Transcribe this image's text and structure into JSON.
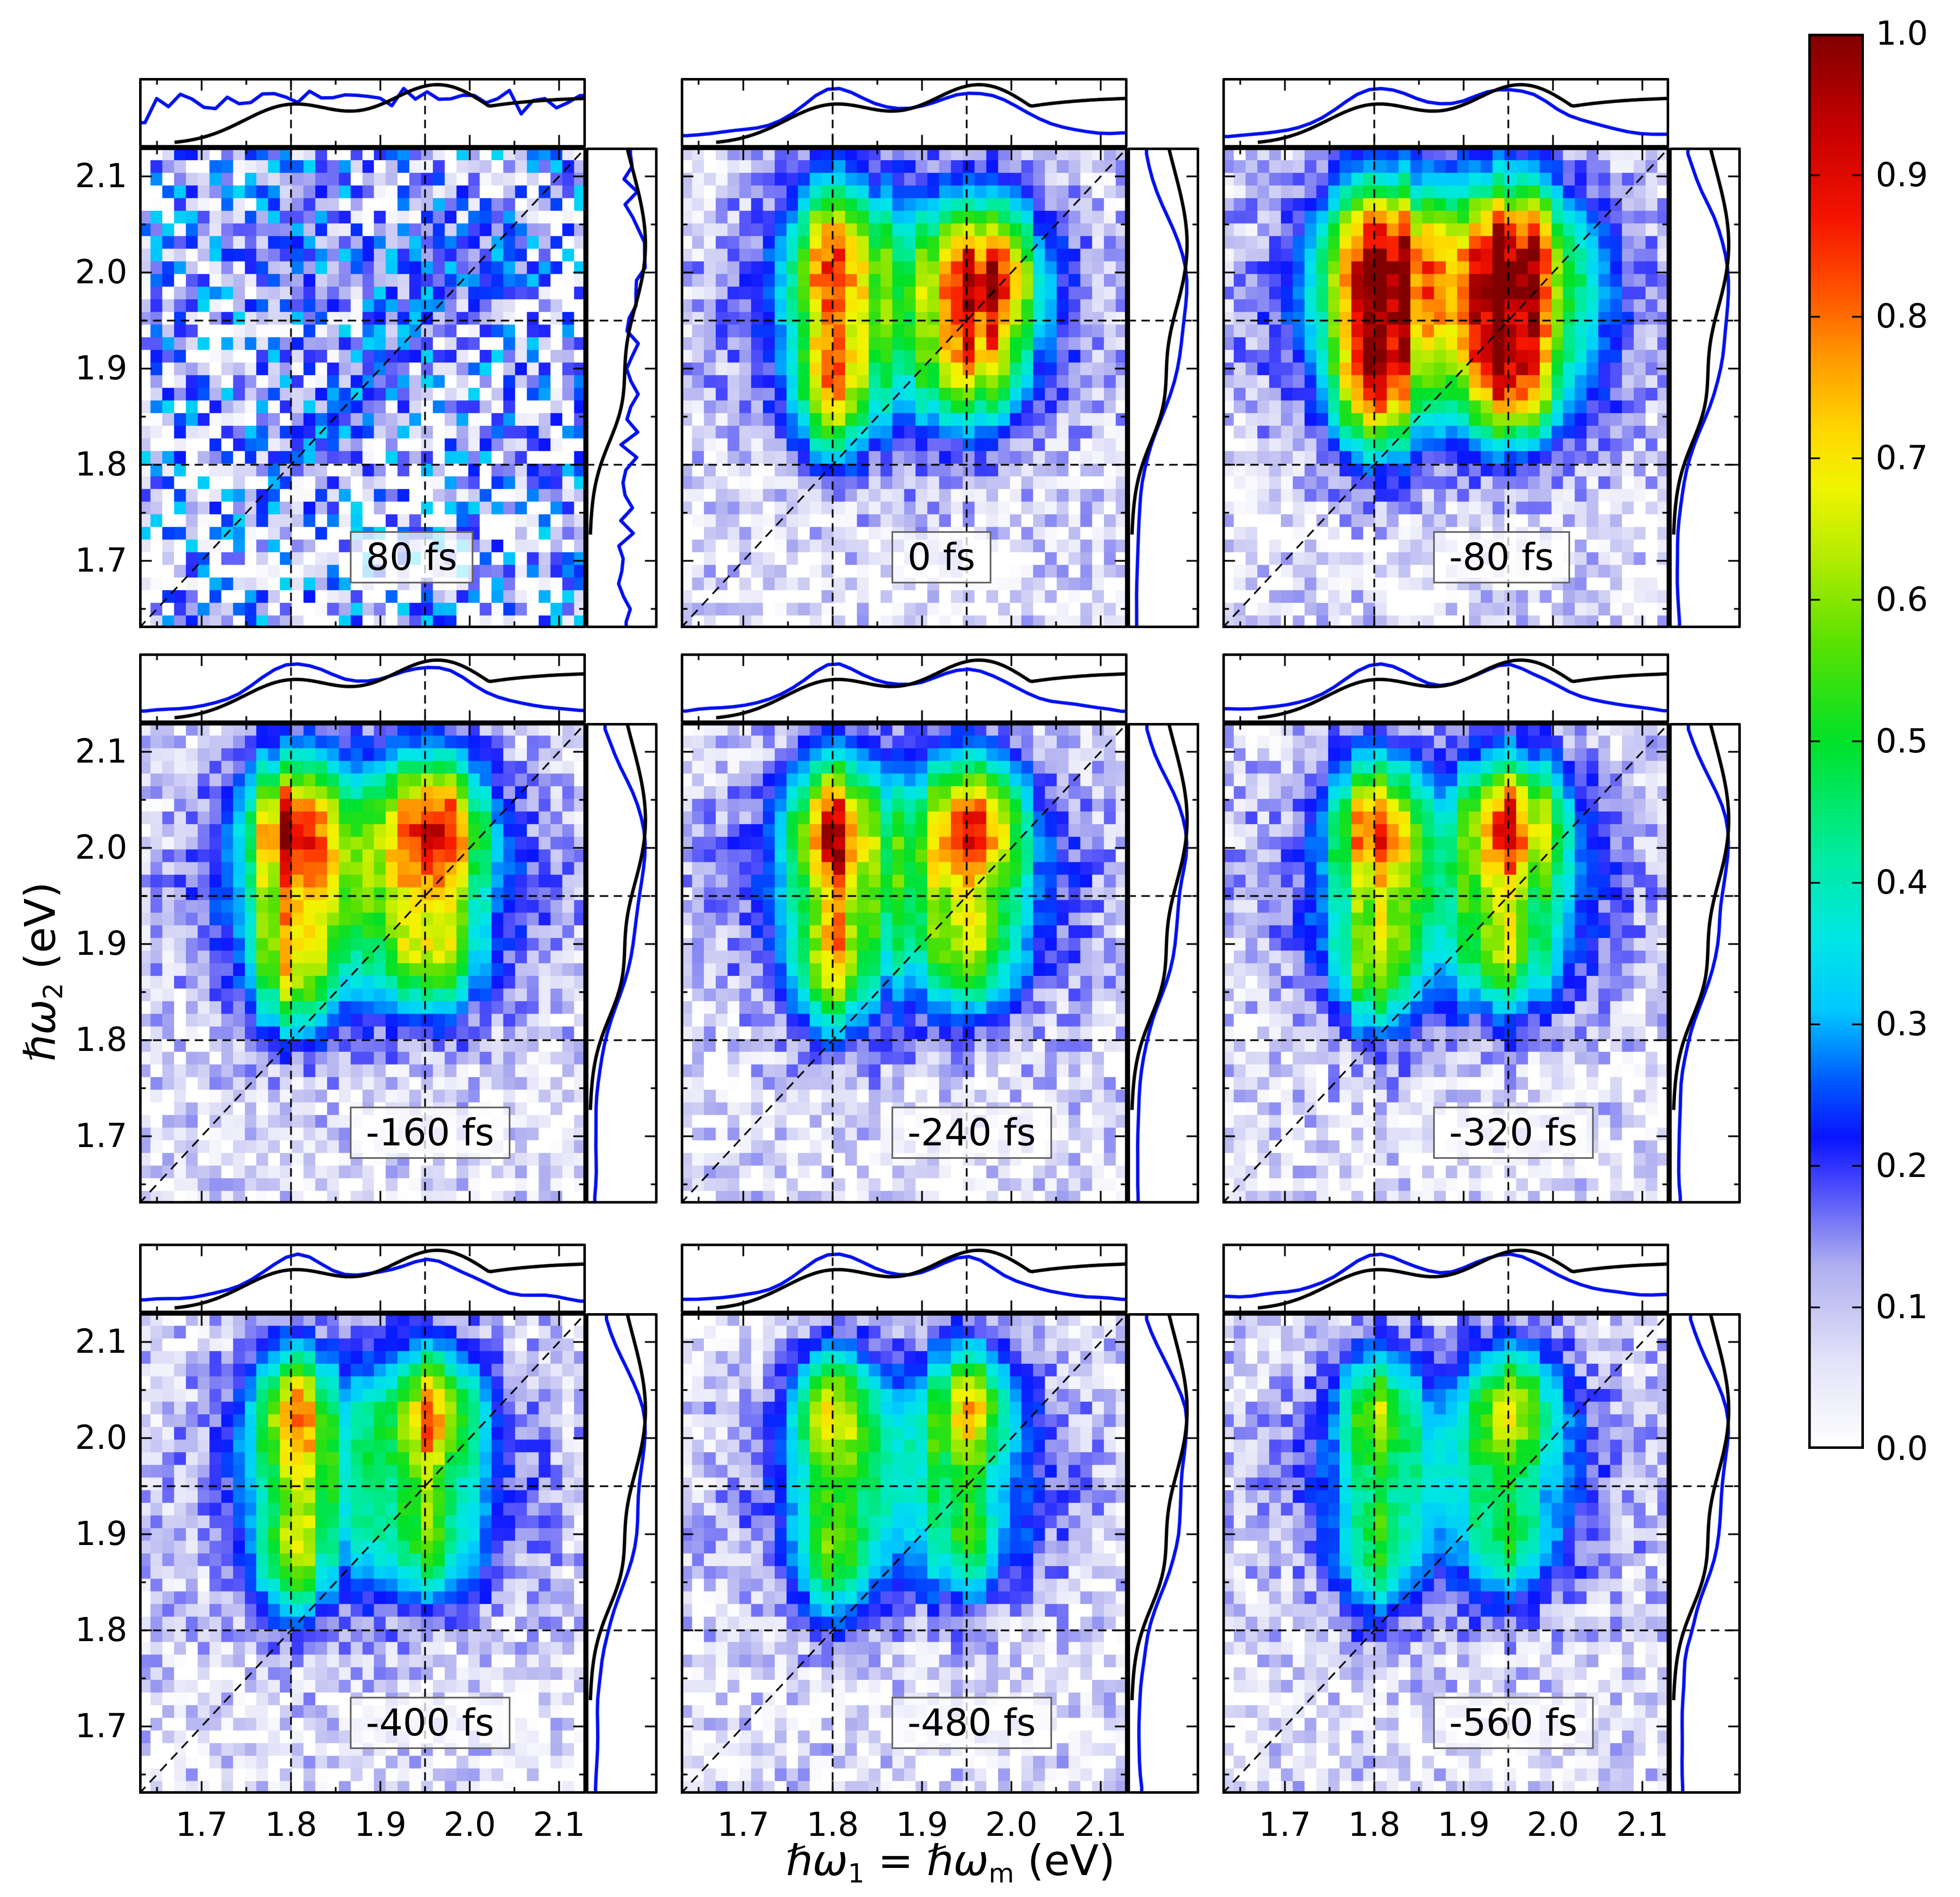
{
  "chart_data": {
    "type": "heatmap",
    "description": "3x3 grid of two-dimensional photon-echo spectra at different delay times, each with top and right marginal spectra (blue = data projection, black = reference spectrum), shared energy axes and a common normalized colorbar",
    "x_axis_title_parts": {
      "p1": "ℏω",
      "s1": "1",
      "p2": " = ",
      "p3": "ℏω",
      "s2": "m",
      "p4": "  (eV)"
    },
    "y_axis_title_parts": {
      "p1": "ℏω",
      "s1": "2",
      "p2": "  (eV)"
    },
    "axes": {
      "x_range_ev": [
        1.63,
        2.13
      ],
      "y_range_ev": [
        1.63,
        2.13
      ],
      "x_tick_labels": [
        "1.7",
        "1.8",
        "1.9",
        "2.0",
        "2.1"
      ],
      "y_tick_labels": [
        "2.1",
        "2.0",
        "1.9",
        "1.8",
        "1.7"
      ],
      "tick_values_ev": [
        1.7,
        1.8,
        1.9,
        2.0,
        2.1
      ],
      "minor_tick_step_ev": 0.05,
      "dashed_gridlines_ev": [
        1.8,
        1.95
      ],
      "diagonal_line": "omega2 = omega1",
      "grid": "dashed crosshair gridlines plus diagonal dashed line in every panel"
    },
    "colorbar": {
      "min": 0.0,
      "max": 1.0,
      "tick_labels": [
        "1.0",
        "0.9",
        "0.8",
        "0.7",
        "0.6",
        "0.5",
        "0.4",
        "0.3",
        "0.2",
        "0.1",
        "0.0"
      ],
      "stops": [
        [
          0.0,
          [
            255,
            255,
            255
          ]
        ],
        [
          0.06,
          [
            228,
            228,
            248
          ]
        ],
        [
          0.13,
          [
            175,
            175,
            240
          ]
        ],
        [
          0.18,
          [
            85,
            85,
            250
          ]
        ],
        [
          0.22,
          [
            10,
            20,
            255
          ]
        ],
        [
          0.26,
          [
            0,
            90,
            255
          ]
        ],
        [
          0.31,
          [
            0,
            200,
            255
          ]
        ],
        [
          0.36,
          [
            0,
            230,
            230
          ]
        ],
        [
          0.42,
          [
            0,
            235,
            160
          ]
        ],
        [
          0.5,
          [
            0,
            225,
            40
          ]
        ],
        [
          0.57,
          [
            90,
            225,
            0
          ]
        ],
        [
          0.63,
          [
            180,
            235,
            0
          ]
        ],
        [
          0.68,
          [
            240,
            245,
            0
          ]
        ],
        [
          0.72,
          [
            255,
            215,
            0
          ]
        ],
        [
          0.77,
          [
            255,
            155,
            0
          ]
        ],
        [
          0.82,
          [
            255,
            80,
            0
          ]
        ],
        [
          0.87,
          [
            245,
            20,
            0
          ]
        ],
        [
          0.93,
          [
            200,
            0,
            0
          ]
        ],
        [
          1.0,
          [
            128,
            0,
            0
          ]
        ]
      ]
    },
    "curve_colors": {
      "data_projection": "#0010f0",
      "reference_spectrum": "#000000"
    },
    "reference_spectra": {
      "top_black": {
        "g1": [
          1.8,
          0.075,
          0.62
        ],
        "g2": [
          1.965,
          0.085,
          0.95
        ],
        "plateau": [
          1.945,
          0.055,
          0.76
        ]
      },
      "right_black": {
        "g1": [
          2.02,
          0.12,
          0.75
        ],
        "g2": [
          1.86,
          0.06,
          0.35
        ],
        "plateau": [
          1.95,
          0.1,
          0.45
        ],
        "cutoff": [
          1.735,
          0.028
        ]
      }
    },
    "panels": [
      {
        "label": "80 fs",
        "delay_fs": 80,
        "seed": 101,
        "noise": 1.0,
        "env": [
          1.85,
          1.99,
          0.16,
          0.13,
          0.11
        ],
        "peaks": [
          [
            1.795,
            2.055,
            0.055,
            0.055,
            0.11
          ],
          [
            1.975,
            2.005,
            0.048,
            0.05,
            0.15
          ],
          [
            2.04,
            2.065,
            0.05,
            0.045,
            0.08
          ]
        ],
        "ridge": [
          1.845,
          0.075,
          0.032,
          0.24
        ]
      },
      {
        "label": "0 fs",
        "delay_fs": 0,
        "seed": 202,
        "noise": 0.45,
        "env": [
          1.885,
          1.96,
          0.175,
          0.135,
          0.45
        ],
        "peaks": [
          [
            1.8,
            2.02,
            0.05,
            0.08,
            0.51
          ],
          [
            1.968,
            2.0,
            0.06,
            0.075,
            0.59
          ],
          [
            1.8,
            1.875,
            0.045,
            0.075,
            0.49
          ],
          [
            1.955,
            1.895,
            0.052,
            0.06,
            0.35
          ]
        ],
        "ridge": null
      },
      {
        "label": "-80 fs",
        "delay_fs": -80,
        "seed": 303,
        "noise": 0.45,
        "env": [
          1.885,
          1.96,
          0.175,
          0.135,
          0.55
        ],
        "peaks": [
          [
            1.805,
            2.015,
            0.062,
            0.085,
            0.61
          ],
          [
            1.96,
            2.015,
            0.066,
            0.085,
            0.61
          ],
          [
            1.8,
            1.88,
            0.048,
            0.075,
            0.55
          ],
          [
            1.958,
            1.885,
            0.055,
            0.065,
            0.52
          ]
        ],
        "ridge": null
      },
      {
        "label": "-160 fs",
        "delay_fs": -160,
        "seed": 404,
        "noise": 0.45,
        "env": [
          1.885,
          1.96,
          0.175,
          0.135,
          0.47
        ],
        "peaks": [
          [
            1.8,
            2.025,
            0.05,
            0.075,
            0.61
          ],
          [
            1.958,
            2.025,
            0.058,
            0.075,
            0.61
          ],
          [
            1.8,
            1.875,
            0.045,
            0.075,
            0.46
          ],
          [
            1.955,
            1.885,
            0.052,
            0.06,
            0.36
          ]
        ],
        "ridge": null
      },
      {
        "label": "-240 fs",
        "delay_fs": -240,
        "seed": 505,
        "noise": 0.45,
        "env": [
          1.885,
          1.96,
          0.175,
          0.135,
          0.45
        ],
        "peaks": [
          [
            1.8,
            2.025,
            0.048,
            0.072,
            0.58
          ],
          [
            1.958,
            2.025,
            0.056,
            0.072,
            0.58
          ],
          [
            1.8,
            1.875,
            0.045,
            0.075,
            0.43
          ],
          [
            1.955,
            1.885,
            0.052,
            0.06,
            0.33
          ]
        ],
        "ridge": null
      },
      {
        "label": "-320 fs",
        "delay_fs": -320,
        "seed": 606,
        "noise": 0.45,
        "env": [
          1.885,
          1.96,
          0.175,
          0.135,
          0.43
        ],
        "peaks": [
          [
            1.8,
            2.025,
            0.046,
            0.07,
            0.56
          ],
          [
            1.958,
            2.028,
            0.054,
            0.07,
            0.56
          ],
          [
            1.8,
            1.875,
            0.044,
            0.074,
            0.4
          ],
          [
            1.955,
            1.885,
            0.052,
            0.06,
            0.31
          ]
        ],
        "ridge": null
      },
      {
        "label": "-400 fs",
        "delay_fs": -400,
        "seed": 707,
        "noise": 0.45,
        "env": [
          1.885,
          1.96,
          0.172,
          0.132,
          0.4
        ],
        "peaks": [
          [
            1.8,
            2.028,
            0.044,
            0.068,
            0.5
          ],
          [
            1.958,
            2.03,
            0.052,
            0.068,
            0.5
          ],
          [
            1.8,
            1.875,
            0.044,
            0.074,
            0.38
          ],
          [
            1.955,
            1.885,
            0.052,
            0.06,
            0.28
          ]
        ],
        "ridge": null
      },
      {
        "label": "-480 fs",
        "delay_fs": -480,
        "seed": 808,
        "noise": 0.45,
        "env": [
          1.885,
          1.96,
          0.17,
          0.13,
          0.38
        ],
        "peaks": [
          [
            1.8,
            2.03,
            0.043,
            0.066,
            0.46
          ],
          [
            1.956,
            2.035,
            0.05,
            0.066,
            0.46
          ],
          [
            1.8,
            1.875,
            0.043,
            0.072,
            0.35
          ],
          [
            1.955,
            1.885,
            0.05,
            0.058,
            0.25
          ]
        ],
        "ridge": null
      },
      {
        "label": "-560 fs",
        "delay_fs": -560,
        "seed": 909,
        "noise": 0.45,
        "env": [
          1.885,
          1.96,
          0.17,
          0.13,
          0.37
        ],
        "peaks": [
          [
            1.8,
            2.03,
            0.043,
            0.066,
            0.42
          ],
          [
            1.956,
            2.035,
            0.05,
            0.066,
            0.42
          ],
          [
            1.8,
            1.875,
            0.043,
            0.072,
            0.32
          ],
          [
            1.955,
            1.885,
            0.05,
            0.058,
            0.23
          ]
        ],
        "ridge": null
      }
    ]
  },
  "grid_n": 38
}
